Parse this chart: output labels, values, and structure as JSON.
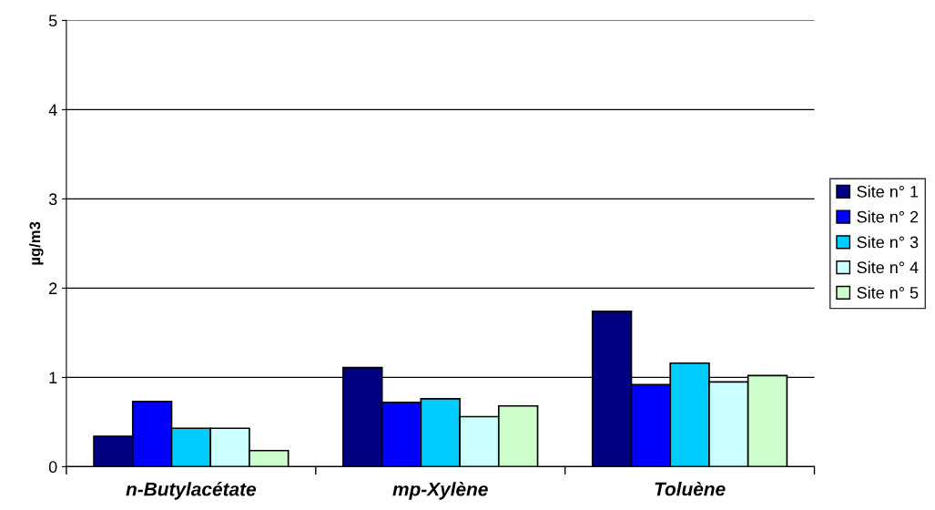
{
  "chart_data": {
    "type": "bar",
    "ylabel": "µg/m3",
    "categories": [
      "n-Butylacétate",
      "mp-Xylène",
      "Toluène"
    ],
    "series": [
      {
        "name": "Site n° 1",
        "color": "#000080",
        "values": [
          0.34,
          1.11,
          1.74
        ]
      },
      {
        "name": "Site n° 2",
        "color": "#0000ff",
        "values": [
          0.73,
          0.72,
          0.92
        ]
      },
      {
        "name": "Site n° 3",
        "color": "#00ccff",
        "values": [
          0.43,
          0.76,
          1.16
        ]
      },
      {
        "name": "Site n° 4",
        "color": "#ccffff",
        "values": [
          0.43,
          0.56,
          0.95
        ]
      },
      {
        "name": "Site n° 5",
        "color": "#ccffcc",
        "values": [
          0.18,
          0.68,
          1.02
        ]
      }
    ],
    "ylim": [
      0,
      5
    ],
    "yticks": [
      0,
      1,
      2,
      3,
      4,
      5
    ],
    "grid": "y",
    "legend": "right"
  }
}
